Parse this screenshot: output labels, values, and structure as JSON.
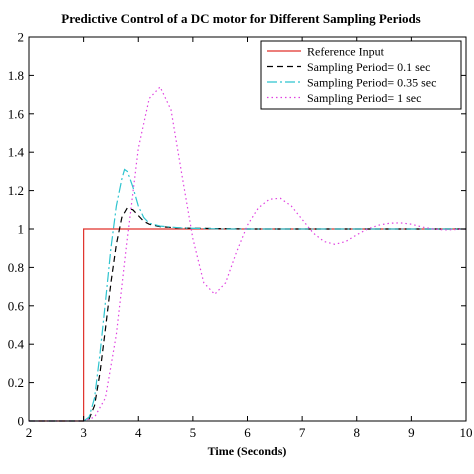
{
  "chart_data": {
    "type": "line",
    "title": "Predictive Control of a DC motor for Different Sampling Periods",
    "xlabel": "Time (Seconds)",
    "ylabel": "",
    "xlim": [
      2,
      10
    ],
    "ylim": [
      0,
      2
    ],
    "x_ticks": [
      2,
      3,
      4,
      5,
      6,
      7,
      8,
      9,
      10
    ],
    "y_ticks": [
      0,
      0.2,
      0.4,
      0.6,
      0.8,
      1,
      1.2,
      1.4,
      1.6,
      1.8,
      2
    ],
    "legend_position": "top-right",
    "grid": false,
    "series": [
      {
        "name": "Reference Input",
        "color": "#e0302a",
        "style": "solid",
        "points": [
          [
            2,
            0
          ],
          [
            3,
            0
          ],
          [
            3,
            1
          ],
          [
            10,
            1
          ]
        ]
      },
      {
        "name": "Sampling Period= 0.1 sec",
        "color": "#000000",
        "style": "dashed",
        "points": [
          [
            2,
            0
          ],
          [
            3.0,
            0
          ],
          [
            3.1,
            0.01
          ],
          [
            3.2,
            0.08
          ],
          [
            3.3,
            0.25
          ],
          [
            3.4,
            0.48
          ],
          [
            3.5,
            0.72
          ],
          [
            3.6,
            0.92
          ],
          [
            3.7,
            1.06
          ],
          [
            3.8,
            1.11
          ],
          [
            3.9,
            1.1
          ],
          [
            4.0,
            1.07
          ],
          [
            4.1,
            1.04
          ],
          [
            4.2,
            1.025
          ],
          [
            4.4,
            1.012
          ],
          [
            4.7,
            1.006
          ],
          [
            5.0,
            1.004
          ],
          [
            6.0,
            1.0
          ],
          [
            10,
            1.0
          ]
        ]
      },
      {
        "name": "Sampling Period= 0.35 sec",
        "color": "#2ec4cf",
        "style": "dashdot",
        "points": [
          [
            2,
            0
          ],
          [
            3.0,
            0
          ],
          [
            3.1,
            0.02
          ],
          [
            3.2,
            0.12
          ],
          [
            3.3,
            0.35
          ],
          [
            3.4,
            0.62
          ],
          [
            3.5,
            0.9
          ],
          [
            3.6,
            1.12
          ],
          [
            3.7,
            1.26
          ],
          [
            3.75,
            1.31
          ],
          [
            3.8,
            1.3
          ],
          [
            3.9,
            1.22
          ],
          [
            4.0,
            1.12
          ],
          [
            4.1,
            1.06
          ],
          [
            4.2,
            1.03
          ],
          [
            4.4,
            1.015
          ],
          [
            4.8,
            1.005
          ],
          [
            5.5,
            1.0
          ],
          [
            10,
            1.0
          ]
        ]
      },
      {
        "name": "Sampling Period= 1 sec",
        "color": "#e040e0",
        "style": "dotted",
        "points": [
          [
            2,
            0
          ],
          [
            3.0,
            0
          ],
          [
            3.2,
            0.02
          ],
          [
            3.4,
            0.12
          ],
          [
            3.6,
            0.45
          ],
          [
            3.8,
            0.95
          ],
          [
            4.0,
            1.42
          ],
          [
            4.2,
            1.68
          ],
          [
            4.4,
            1.74
          ],
          [
            4.6,
            1.62
          ],
          [
            4.8,
            1.28
          ],
          [
            5.0,
            0.95
          ],
          [
            5.2,
            0.72
          ],
          [
            5.4,
            0.66
          ],
          [
            5.6,
            0.72
          ],
          [
            5.8,
            0.88
          ],
          [
            6.0,
            1.02
          ],
          [
            6.2,
            1.11
          ],
          [
            6.4,
            1.155
          ],
          [
            6.6,
            1.16
          ],
          [
            6.8,
            1.12
          ],
          [
            7.0,
            1.05
          ],
          [
            7.2,
            0.98
          ],
          [
            7.4,
            0.935
          ],
          [
            7.6,
            0.92
          ],
          [
            7.8,
            0.935
          ],
          [
            8.0,
            0.97
          ],
          [
            8.2,
            1.0
          ],
          [
            8.4,
            1.02
          ],
          [
            8.6,
            1.03
          ],
          [
            8.8,
            1.032
          ],
          [
            9.0,
            1.025
          ],
          [
            9.2,
            1.01
          ],
          [
            9.4,
            1.0
          ],
          [
            9.6,
            0.995
          ],
          [
            9.8,
            0.997
          ],
          [
            10,
            1.0
          ]
        ]
      }
    ]
  }
}
